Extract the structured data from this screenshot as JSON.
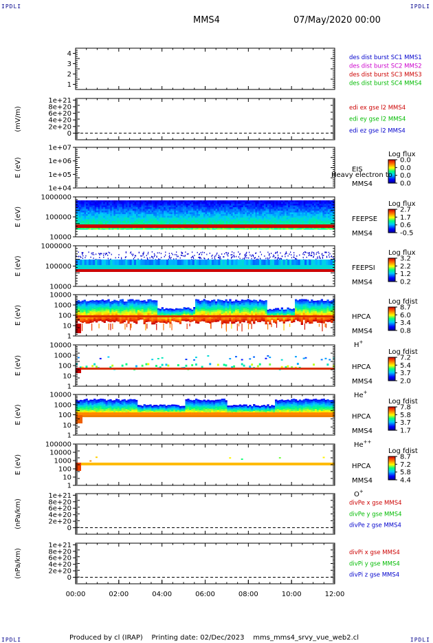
{
  "corner_label": "IPDLI",
  "header": {
    "mission": "MMS4",
    "datetime": "07/May/2020 00:00"
  },
  "footer": {
    "produced": "Produced by cl (IRAP)",
    "printing": "Printing date: 02/Dec/2023",
    "file": "mms_mms4_srvy_vue_web2.cl"
  },
  "colors": {
    "blue": "#0000cc",
    "magenta": "#cc00cc",
    "red": "#cc0000",
    "green": "#00bb00"
  },
  "chart_data": [
    {
      "type": "line",
      "id": "p1",
      "ylim": [
        0.5,
        4.5
      ],
      "yticks": [
        "1",
        "2",
        "3",
        "4"
      ],
      "legend": [
        {
          "text": "des dist burst SC1 MMS1",
          "color": "#0000cc"
        },
        {
          "text": "des dist burst SC2 MMS2",
          "color": "#cc00cc"
        },
        {
          "text": "des dist burst SC3 MMS3",
          "color": "#cc0000"
        },
        {
          "text": "des dist burst SC4 MMS4",
          "color": "#00bb00"
        }
      ]
    },
    {
      "type": "line",
      "id": "p2",
      "ylabel": "(mV/m)",
      "ylim": [
        -2e+20,
        1.05e+21
      ],
      "yticks": [
        "1e+21",
        "8e+20",
        "6e+20",
        "4e+20",
        "2e+20",
        "0"
      ],
      "legend": [
        {
          "text": "edi ex gse l2 MMS4",
          "color": "#cc0000"
        },
        {
          "text": "edi ey gse l2 MMS4",
          "color": "#00bb00"
        },
        {
          "text": "edi ez gse l2 MMS4",
          "color": "#0000cc"
        }
      ]
    },
    {
      "type": "heatmap",
      "id": "p3",
      "ylabel": "E (eV)",
      "yticks": [
        "1e+07",
        "1e+06",
        "1e+05",
        "1e+04"
      ],
      "instrument": [
        "EIS",
        "MMS4"
      ],
      "overlay": "Heavy electron to",
      "cbar": {
        "title": "Log flux",
        "ticks": [
          "0.0",
          "0.0",
          "0.0",
          "0.0"
        ]
      }
    },
    {
      "type": "heatmap",
      "id": "p4",
      "ylabel": "E (eV)",
      "yticks": [
        "1000000",
        "100000",
        "10000"
      ],
      "instrument": [
        "FEEPSE",
        "MMS4"
      ],
      "cbar": {
        "title": "Log flux",
        "ticks": [
          "2.7",
          "1.7",
          "0.6",
          "-0.5"
        ]
      }
    },
    {
      "type": "heatmap",
      "id": "p5",
      "ylabel": "E (eV)",
      "yticks": [
        "1000000",
        "100000",
        "10000"
      ],
      "instrument": [
        "FEEPSI",
        "MMS4"
      ],
      "cbar": {
        "title": "Log flux",
        "ticks": [
          "3.2",
          "2.2",
          "1.2",
          "0.2"
        ]
      }
    },
    {
      "type": "heatmap",
      "id": "p6",
      "ylabel": "E (eV)",
      "yticks": [
        "10000",
        "1000",
        "100",
        "10",
        "1"
      ],
      "instrument": [
        "HPCA",
        "MMS4"
      ],
      "species": "H",
      "charge": "+",
      "cbar": {
        "title": "Log fdist",
        "ticks": [
          "8.7",
          "6.0",
          "3.4",
          "0.8"
        ]
      }
    },
    {
      "type": "heatmap",
      "id": "p7",
      "ylabel": "E (eV)",
      "yticks": [
        "10000",
        "1000",
        "100",
        "10",
        "1"
      ],
      "instrument": [
        "HPCA",
        "MMS4"
      ],
      "species": "He",
      "charge": "+",
      "cbar": {
        "title": "Log fdist",
        "ticks": [
          "7.2",
          "5.4",
          "3.7",
          "2.0"
        ]
      }
    },
    {
      "type": "heatmap",
      "id": "p8",
      "ylabel": "E (eV)",
      "yticks": [
        "10000",
        "1000",
        "100",
        "10",
        "1"
      ],
      "instrument": [
        "HPCA",
        "MMS4"
      ],
      "species": "He",
      "charge": "++",
      "cbar": {
        "title": "Log fdist",
        "ticks": [
          "7.8",
          "5.8",
          "3.7",
          "1.7"
        ]
      }
    },
    {
      "type": "heatmap",
      "id": "p9",
      "ylabel": "E (eV)",
      "yticks": [
        "100000",
        "10000",
        "1000",
        "100",
        "10",
        "1"
      ],
      "instrument": [
        "HPCA",
        "MMS4"
      ],
      "species": "O",
      "charge": "+",
      "cbar": {
        "title": "Log fdist",
        "ticks": [
          "8.7",
          "7.2",
          "5.8",
          "4.4"
        ]
      }
    },
    {
      "type": "line",
      "id": "p10",
      "ylabel": "(nPa/km)",
      "ylim": [
        -2e+20,
        1.05e+21
      ],
      "yticks": [
        "1e+21",
        "8e+20",
        "6e+20",
        "4e+20",
        "2e+20",
        "0"
      ],
      "legend": [
        {
          "text": "divPe x gse MMS4",
          "color": "#cc0000"
        },
        {
          "text": "divPe y gse MMS4",
          "color": "#00bb00"
        },
        {
          "text": "divPe z gse MMS4",
          "color": "#0000cc"
        }
      ]
    },
    {
      "type": "line",
      "id": "p11",
      "ylabel": "(nPa/km)",
      "ylim": [
        -2e+20,
        1.05e+21
      ],
      "yticks": [
        "1e+21",
        "8e+20",
        "6e+20",
        "4e+20",
        "2e+20",
        "0"
      ],
      "legend": [
        {
          "text": "divPi x gse MMS4",
          "color": "#cc0000"
        },
        {
          "text": "divPi y gse MMS4",
          "color": "#00bb00"
        },
        {
          "text": "divPi z gse MMS4",
          "color": "#0000cc"
        }
      ],
      "xticks": [
        "00:00",
        "02:00",
        "04:00",
        "06:00",
        "08:00",
        "10:00",
        "12:00"
      ]
    }
  ]
}
